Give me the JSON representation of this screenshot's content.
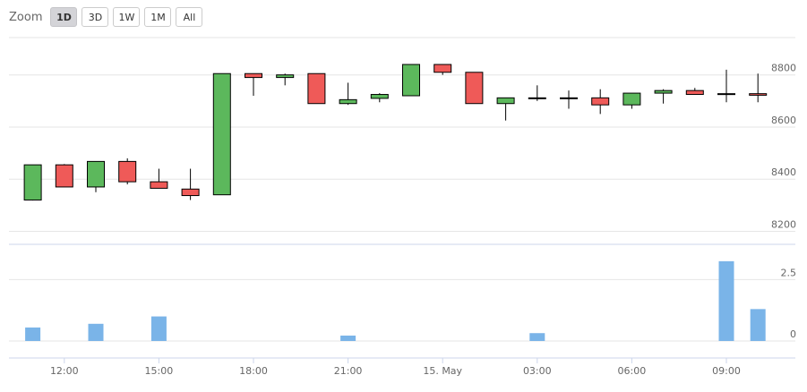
{
  "toolbar": {
    "zoom_label": "Zoom",
    "buttons": [
      {
        "label": "1D",
        "active": true
      },
      {
        "label": "3D",
        "active": false
      },
      {
        "label": "1W",
        "active": false
      },
      {
        "label": "1M",
        "active": false
      },
      {
        "label": "All",
        "active": false
      }
    ]
  },
  "colors": {
    "up": "#5cb85c",
    "down": "#ef5a58",
    "volume": "#7ab4e8",
    "grid": "#e6e6e6",
    "axis": "#ccd6eb",
    "wick": "#000000"
  },
  "chart_data": {
    "type": "candlestick",
    "x_ticks": [
      "12:00",
      "15:00",
      "18:00",
      "21:00",
      "15. May",
      "03:00",
      "06:00",
      "09:00"
    ],
    "price_axis": {
      "ticks": [
        "8200",
        "8400",
        "8600",
        "8800"
      ],
      "range": [
        8150,
        8950
      ]
    },
    "volume_axis": {
      "ticks": [
        "0",
        "2.5"
      ],
      "range": [
        0,
        3.5
      ]
    },
    "candles": [
      {
        "open": 8320,
        "high": 8455,
        "low": 8318,
        "close": 8455
      },
      {
        "open": 8455,
        "high": 8458,
        "low": 8370,
        "close": 8370
      },
      {
        "open": 8370,
        "high": 8468,
        "low": 8350,
        "close": 8468
      },
      {
        "open": 8468,
        "high": 8480,
        "low": 8380,
        "close": 8390
      },
      {
        "open": 8390,
        "high": 8440,
        "low": 8365,
        "close": 8365
      },
      {
        "open": 8362,
        "high": 8440,
        "low": 8320,
        "close": 8337
      },
      {
        "open": 8340,
        "high": 8805,
        "low": 8340,
        "close": 8805
      },
      {
        "open": 8805,
        "high": 8805,
        "low": 8720,
        "close": 8790
      },
      {
        "open": 8790,
        "high": 8805,
        "low": 8760,
        "close": 8800
      },
      {
        "open": 8805,
        "high": 8805,
        "low": 8690,
        "close": 8690
      },
      {
        "open": 8690,
        "high": 8770,
        "low": 8685,
        "close": 8705
      },
      {
        "open": 8710,
        "high": 8730,
        "low": 8695,
        "close": 8725
      },
      {
        "open": 8720,
        "high": 8840,
        "low": 8720,
        "close": 8840
      },
      {
        "open": 8840,
        "high": 8840,
        "low": 8800,
        "close": 8810
      },
      {
        "open": 8810,
        "high": 8810,
        "low": 8690,
        "close": 8690
      },
      {
        "open": 8690,
        "high": 8712,
        "low": 8625,
        "close": 8712
      },
      {
        "open": 8712,
        "high": 8760,
        "low": 8700,
        "close": 8710
      },
      {
        "open": 8712,
        "high": 8740,
        "low": 8670,
        "close": 8710
      },
      {
        "open": 8712,
        "high": 8745,
        "low": 8650,
        "close": 8685
      },
      {
        "open": 8685,
        "high": 8730,
        "low": 8670,
        "close": 8730
      },
      {
        "open": 8730,
        "high": 8745,
        "low": 8690,
        "close": 8740
      },
      {
        "open": 8740,
        "high": 8750,
        "low": 8725,
        "close": 8725
      },
      {
        "open": 8728,
        "high": 8820,
        "low": 8695,
        "close": 8728
      },
      {
        "open": 8728,
        "high": 8805,
        "low": 8695,
        "close": 8722
      }
    ],
    "volumes": [
      0.55,
      0,
      0.7,
      0,
      1.0,
      0,
      0,
      0,
      0,
      0,
      0.22,
      0,
      0,
      0,
      0,
      0,
      0.32,
      0,
      0,
      0,
      0,
      0,
      3.25,
      1.3
    ]
  }
}
